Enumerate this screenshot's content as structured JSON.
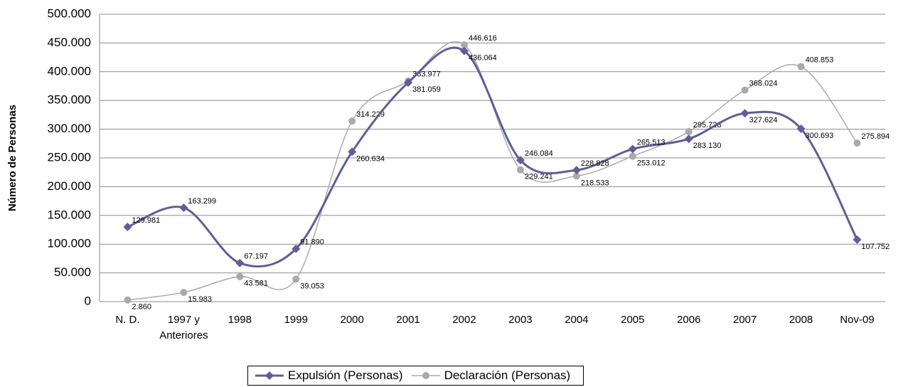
{
  "chart_data": {
    "type": "line",
    "y_label": "Número de Personas",
    "categories": [
      "N. D.",
      "1997 y Anteriores",
      "1998",
      "1999",
      "2000",
      "2001",
      "2002",
      "2003",
      "2004",
      "2005",
      "2006",
      "2007",
      "2008",
      "Nov-09"
    ],
    "series": [
      {
        "name": "Expulsión (Personas)",
        "color": "#5f5e96",
        "marker": "diamond",
        "values": [
          129981,
          163299,
          67197,
          91890,
          260634,
          381059,
          436064,
          246084,
          228828,
          265513,
          283130,
          327624,
          300693,
          107752
        ],
        "value_labels": [
          "129.981",
          "163.299",
          "67.197",
          "91.890",
          "260.634",
          "381.059",
          "436.064",
          "246.084",
          "228.828",
          "265.513",
          "283.130",
          "327.624",
          "300.693",
          "107.752"
        ]
      },
      {
        "name": "Declaración (Personas)",
        "color": "#aaaaaa",
        "marker": "circle",
        "values": [
          2860,
          15983,
          43581,
          39053,
          314229,
          383977,
          446616,
          229241,
          218533,
          253012,
          295728,
          368024,
          408853,
          275894
        ],
        "value_labels": [
          "2.860",
          "15.983",
          "43.581",
          "39.053",
          "314.229",
          "383.977",
          "446.616",
          "229.241",
          "218.533",
          "253.012",
          "295.728",
          "368.024",
          "408.853",
          "275.894"
        ]
      }
    ],
    "ylim": [
      0,
      500000
    ],
    "yticks": [
      0,
      {
        "value": 50000,
        "label": "50.000"
      },
      {
        "value": 100000,
        "label": "100.000"
      },
      {
        "value": 150000,
        "label": "150.000"
      },
      {
        "value": 200000,
        "label": "200.000"
      },
      {
        "value": 250000,
        "label": "250.000"
      },
      {
        "value": 300000,
        "label": "300.000"
      },
      {
        "value": 350000,
        "label": "350.000"
      },
      {
        "value": 400000,
        "label": "400.000"
      },
      {
        "value": 450000,
        "label": "450.000"
      },
      {
        "value": 500000,
        "label": "500.000"
      }
    ],
    "grid": true,
    "smooth": true,
    "legend": "bottom"
  }
}
